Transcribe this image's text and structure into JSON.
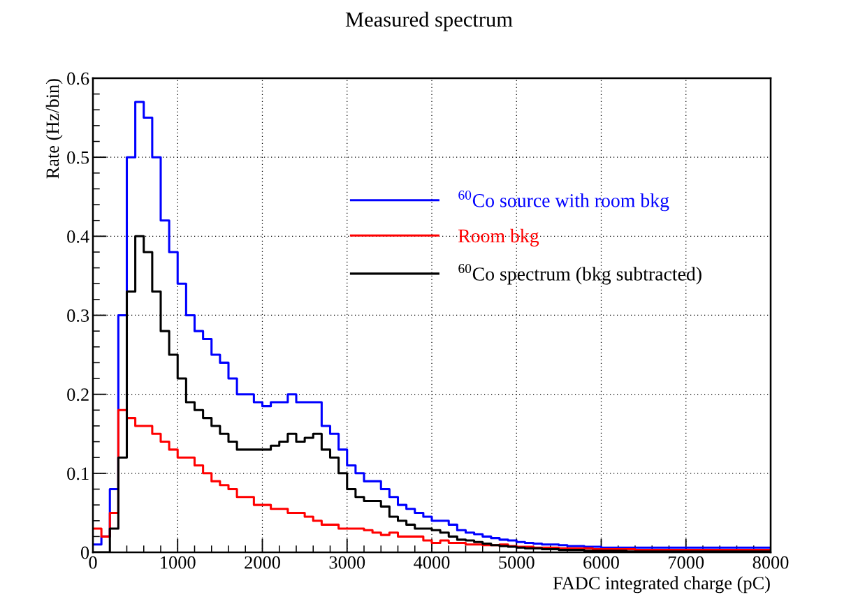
{
  "chart_data": {
    "type": "step",
    "title": "Measured spectrum",
    "xlabel": "FADC integrated charge (pC)",
    "ylabel": "Rate (Hz/bin)",
    "x": [
      0,
      100,
      200,
      300,
      400,
      500,
      600,
      700,
      800,
      900,
      1000,
      1100,
      1200,
      1300,
      1400,
      1500,
      1600,
      1700,
      1800,
      1900,
      2000,
      2100,
      2200,
      2300,
      2400,
      2500,
      2600,
      2700,
      2800,
      2900,
      3000,
      3100,
      3200,
      3300,
      3400,
      3500,
      3600,
      3700,
      3800,
      3900,
      4000,
      4100,
      4200,
      4300,
      4400,
      4500,
      4600,
      4700,
      4800,
      4900,
      5000,
      5100,
      5200,
      5300,
      5400,
      5500,
      5600,
      5700,
      5800,
      5900,
      6000,
      6100,
      6200,
      6300,
      6400,
      6500,
      6600,
      6700,
      6800,
      6900,
      7000,
      7100,
      7200,
      7300,
      7400,
      7500,
      7600,
      7700,
      7800,
      7900,
      8000
    ],
    "series": [
      {
        "name": "$^{60}$Co source with room bkg",
        "color": "#0000ff",
        "values": [
          0.01,
          0.02,
          0.08,
          0.3,
          0.5,
          0.57,
          0.55,
          0.5,
          0.42,
          0.38,
          0.34,
          0.3,
          0.28,
          0.27,
          0.25,
          0.24,
          0.22,
          0.2,
          0.2,
          0.19,
          0.185,
          0.19,
          0.19,
          0.2,
          0.19,
          0.19,
          0.19,
          0.16,
          0.15,
          0.13,
          0.11,
          0.1,
          0.09,
          0.09,
          0.08,
          0.07,
          0.06,
          0.055,
          0.05,
          0.045,
          0.04,
          0.04,
          0.035,
          0.028,
          0.025,
          0.023,
          0.02,
          0.018,
          0.016,
          0.015,
          0.013,
          0.012,
          0.011,
          0.01,
          0.01,
          0.009,
          0.008,
          0.008,
          0.007,
          0.007,
          0.006,
          0.006,
          0.006,
          0.006,
          0.006,
          0.006,
          0.006,
          0.006,
          0.006,
          0.006,
          0.006,
          0.006,
          0.006,
          0.006,
          0.006,
          0.006,
          0.006,
          0.006,
          0.006,
          0.006,
          0.006
        ]
      },
      {
        "name": "Room bkg",
        "color": "#ff0000",
        "values": [
          0.03,
          0.02,
          0.05,
          0.18,
          0.17,
          0.16,
          0.16,
          0.15,
          0.14,
          0.13,
          0.12,
          0.12,
          0.11,
          0.1,
          0.09,
          0.085,
          0.08,
          0.07,
          0.07,
          0.06,
          0.06,
          0.055,
          0.055,
          0.05,
          0.05,
          0.045,
          0.04,
          0.035,
          0.035,
          0.03,
          0.03,
          0.03,
          0.028,
          0.025,
          0.022,
          0.025,
          0.02,
          0.02,
          0.02,
          0.015,
          0.012,
          0.015,
          0.012,
          0.012,
          0.01,
          0.01,
          0.009,
          0.009,
          0.01,
          0.008,
          0.007,
          0.007,
          0.006,
          0.006,
          0.006,
          0.005,
          0.005,
          0.005,
          0.005,
          0.004,
          0.004,
          0.004,
          0.004,
          0.004,
          0.003,
          0.003,
          0.003,
          0.003,
          0.003,
          0.003,
          0.003,
          0.003,
          0.003,
          0.003,
          0.003,
          0.003,
          0.003,
          0.003,
          0.003,
          0.003,
          0.003
        ]
      },
      {
        "name": "$^{60}$Co spectrum (bkg subtracted)",
        "color": "#000000",
        "values": [
          0.0,
          0.0,
          0.03,
          0.12,
          0.33,
          0.4,
          0.38,
          0.33,
          0.28,
          0.25,
          0.22,
          0.19,
          0.18,
          0.17,
          0.16,
          0.15,
          0.14,
          0.13,
          0.13,
          0.13,
          0.13,
          0.135,
          0.14,
          0.15,
          0.14,
          0.145,
          0.15,
          0.13,
          0.12,
          0.1,
          0.08,
          0.07,
          0.065,
          0.065,
          0.058,
          0.045,
          0.04,
          0.035,
          0.03,
          0.03,
          0.028,
          0.025,
          0.02,
          0.016,
          0.015,
          0.013,
          0.011,
          0.009,
          0.008,
          0.007,
          0.006,
          0.005,
          0.005,
          0.004,
          0.004,
          0.003,
          0.003,
          0.003,
          0.002,
          0.002,
          0.002,
          0.002,
          0.002,
          0.001,
          0.001,
          0.001,
          0.001,
          0.001,
          0.001,
          0.001,
          0.001,
          0.001,
          0.001,
          0.001,
          0.001,
          0.001,
          0.001,
          0.001,
          0.001,
          0.001,
          0.001
        ]
      }
    ],
    "xlim": [
      0,
      8000
    ],
    "xticks": [
      0,
      1000,
      2000,
      3000,
      4000,
      5000,
      6000,
      7000,
      8000
    ],
    "ylim": [
      0,
      0.6
    ],
    "yticks": [
      0,
      0.1,
      0.2,
      0.3,
      0.4,
      0.5,
      0.6
    ],
    "grid": true,
    "legend": "top",
    "line_style": "solid"
  }
}
